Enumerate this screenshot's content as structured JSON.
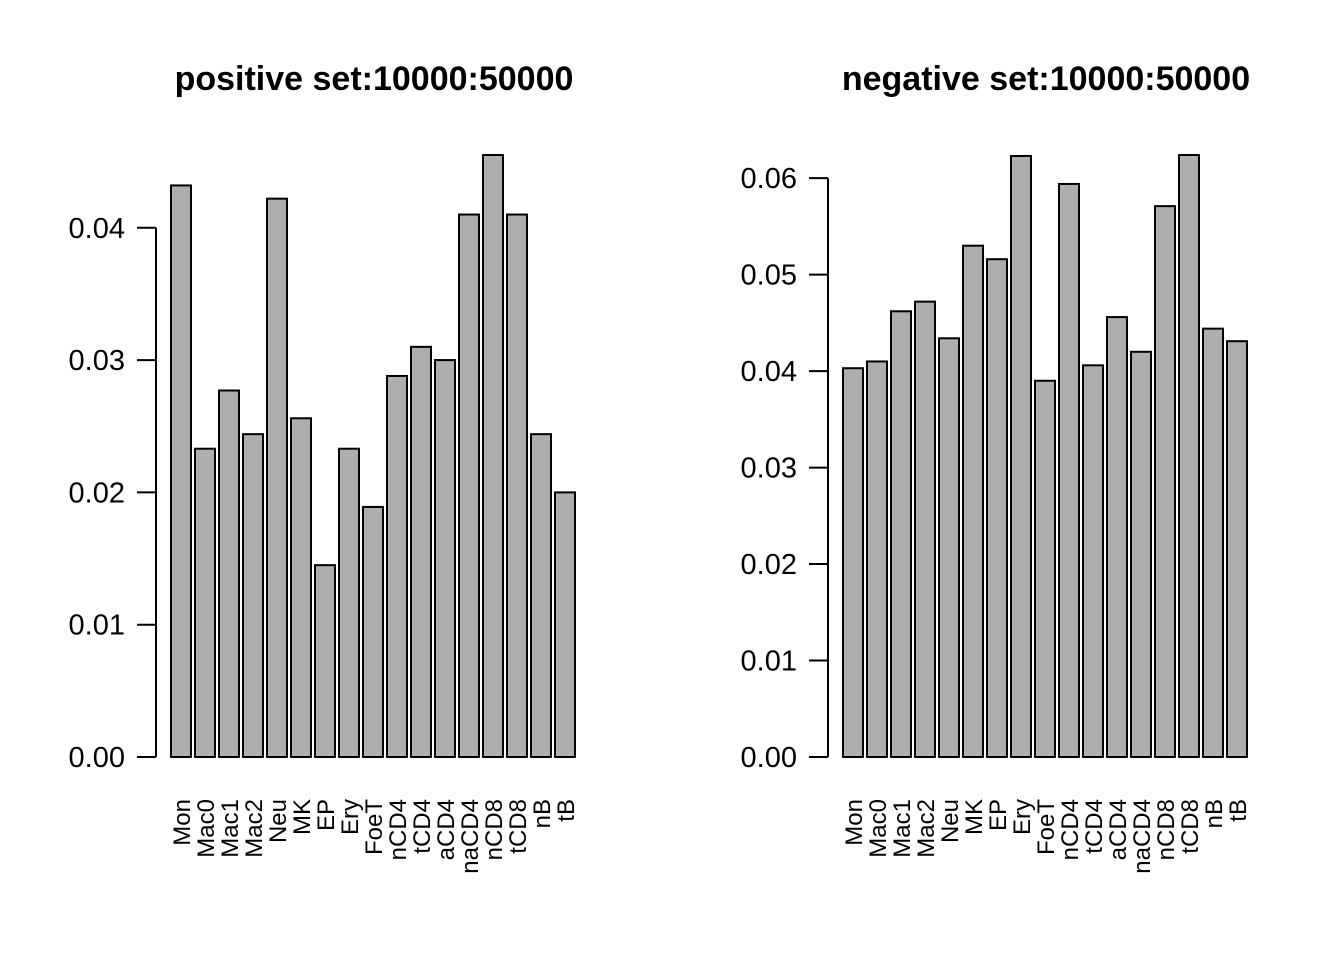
{
  "figure": {
    "background_color": "#ffffff",
    "bar_fill_color": "#aeaeae",
    "bar_stroke_color": "#000000",
    "axis_color": "#000000",
    "panel_count": 2
  },
  "chart_data": [
    {
      "type": "bar",
      "title": "positive set:10000:50000",
      "xlabel": "",
      "ylabel": "",
      "grid": false,
      "legend": null,
      "ylim": [
        0,
        0.0455
      ],
      "yticks": [
        0,
        0.01,
        0.02,
        0.03,
        0.04
      ],
      "ytick_labels": [
        "0.00",
        "0.01",
        "0.02",
        "0.03",
        "0.04"
      ],
      "categories": [
        "Mon",
        "Mac0",
        "Mac1",
        "Mac2",
        "Neu",
        "MK",
        "EP",
        "Ery",
        "FoeT",
        "nCD4",
        "tCD4",
        "aCD4",
        "naCD4",
        "nCD8",
        "tCD8",
        "nB",
        "tB"
      ],
      "values": [
        0.0432,
        0.0233,
        0.0277,
        0.0244,
        0.0422,
        0.0256,
        0.0145,
        0.0233,
        0.0189,
        0.0288,
        0.031,
        0.03,
        0.041,
        0.0455,
        0.041,
        0.0244,
        0.02
      ]
    },
    {
      "type": "bar",
      "title": "negative set:10000:50000",
      "xlabel": "",
      "ylabel": "",
      "grid": false,
      "legend": null,
      "ylim": [
        0,
        0.0624
      ],
      "yticks": [
        0,
        0.01,
        0.02,
        0.03,
        0.04,
        0.05,
        0.06
      ],
      "ytick_labels": [
        "0.00",
        "0.01",
        "0.02",
        "0.03",
        "0.04",
        "0.05",
        "0.06"
      ],
      "categories": [
        "Mon",
        "Mac0",
        "Mac1",
        "Mac2",
        "Neu",
        "MK",
        "EP",
        "Ery",
        "FoeT",
        "nCD4",
        "tCD4",
        "aCD4",
        "naCD4",
        "nCD8",
        "tCD8",
        "nB",
        "tB"
      ],
      "values": [
        0.0403,
        0.041,
        0.0462,
        0.0472,
        0.0434,
        0.053,
        0.0516,
        0.0623,
        0.039,
        0.0594,
        0.0406,
        0.0456,
        0.042,
        0.0571,
        0.0624,
        0.0444,
        0.0431
      ]
    }
  ]
}
